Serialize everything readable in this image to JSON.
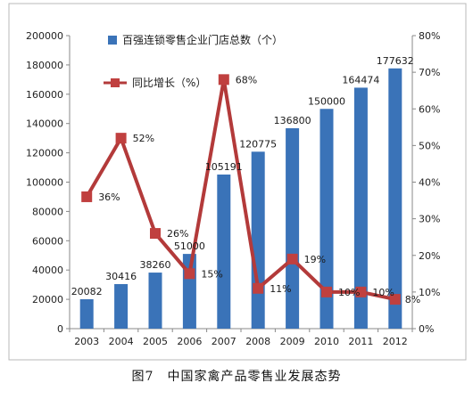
{
  "caption": "图7　中国家禽产品零售业发展态势",
  "colors": {
    "bar": "#3a73b8",
    "line": "#b33a3a",
    "marker": "#c0403f",
    "axis": "#888888",
    "frame": "#b8b8b8"
  },
  "chart_data": {
    "type": "bar",
    "categories": [
      "2003",
      "2004",
      "2005",
      "2006",
      "2007",
      "2008",
      "2009",
      "2010",
      "2011",
      "2012"
    ],
    "series": [
      {
        "name": "百强连锁零售企业门店总数（个）",
        "type": "bar",
        "axis": "left",
        "values": [
          20082,
          30416,
          38260,
          51000,
          105191,
          120775,
          136800,
          150000,
          164474,
          177632
        ],
        "labels": [
          "20082",
          "30416",
          "38260",
          "51000",
          "105191",
          "120775",
          "136800",
          "150000",
          "164474",
          "177632"
        ]
      },
      {
        "name": "同比增长（%）",
        "type": "line",
        "axis": "right",
        "values": [
          36,
          52,
          26,
          15,
          68,
          11,
          19,
          10,
          10,
          8
        ],
        "labels": [
          "36%",
          "52%",
          "26%",
          "15%",
          "68%",
          "11%",
          "19%",
          "10%",
          "10%",
          "8%"
        ]
      }
    ],
    "y_left": {
      "min": 0,
      "max": 200000,
      "step": 20000,
      "ticks": [
        "0",
        "20000",
        "40000",
        "60000",
        "80000",
        "100000",
        "120000",
        "140000",
        "160000",
        "180000",
        "200000"
      ]
    },
    "y_right": {
      "min": 0,
      "max": 80,
      "step": 10,
      "ticks": [
        "0%",
        "10%",
        "20%",
        "30%",
        "40%",
        "50%",
        "60%",
        "70%",
        "80%"
      ]
    },
    "grid": false,
    "legend_position": "top-left"
  }
}
